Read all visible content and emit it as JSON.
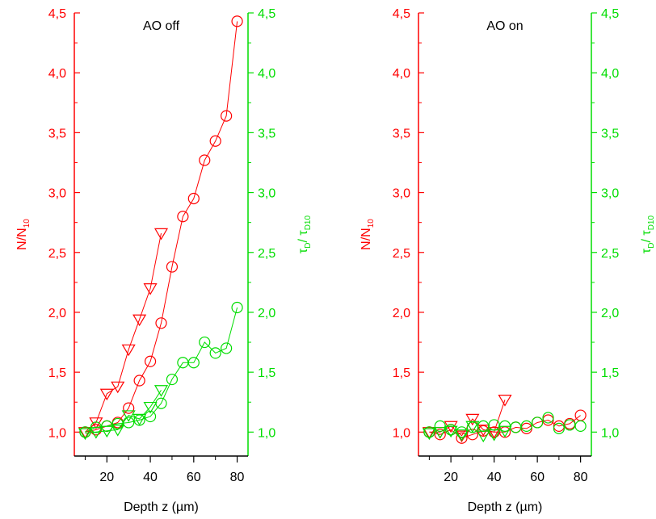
{
  "colors": {
    "left_axis": "#ff0000",
    "right_axis": "#00dd00",
    "x_axis": "#000000"
  },
  "chart_data": [
    {
      "type": "scatter",
      "title": "AO off",
      "xlabel": "Depth z (µm)",
      "ylabel": "N/N",
      "ylabel_sub": "10",
      "y2label_main": "τ",
      "y2label_sub1": "D",
      "y2label_sep": "/ τ",
      "y2label_sub2": "D10",
      "xlim": [
        5,
        85
      ],
      "ylim": [
        0.8,
        4.5
      ],
      "y2lim": [
        0.8,
        4.5
      ],
      "xticks": [
        20,
        40,
        60,
        80
      ],
      "yticks": [
        "1,0",
        "1,5",
        "2,0",
        "2,5",
        "3,0",
        "3,5",
        "4,0",
        "4,5"
      ],
      "ytick_values": [
        1.0,
        1.5,
        2.0,
        2.5,
        3.0,
        3.5,
        4.0,
        4.5
      ],
      "series": [
        {
          "axis": "left",
          "marker": "circle",
          "color": "#ff0000",
          "line": true,
          "x": [
            10,
            15,
            20,
            25,
            30,
            35,
            40,
            45,
            50,
            55,
            60,
            65,
            70,
            75,
            80
          ],
          "y": [
            1.0,
            1.02,
            1.05,
            1.08,
            1.2,
            1.43,
            1.59,
            1.91,
            2.38,
            2.8,
            2.95,
            3.27,
            3.43,
            3.64,
            4.43
          ]
        },
        {
          "axis": "left",
          "marker": "triangle-down",
          "color": "#ff0000",
          "line": true,
          "x": [
            10,
            15,
            20,
            25,
            30,
            35,
            40,
            45
          ],
          "y": [
            1.0,
            1.08,
            1.32,
            1.38,
            1.69,
            1.94,
            2.2,
            2.66
          ]
        },
        {
          "axis": "right",
          "marker": "circle",
          "color": "#00dd00",
          "line": true,
          "x": [
            10,
            15,
            20,
            25,
            30,
            35,
            40,
            45,
            50,
            55,
            60,
            65,
            70,
            75,
            80
          ],
          "y": [
            1.0,
            1.04,
            1.05,
            1.07,
            1.08,
            1.1,
            1.13,
            1.24,
            1.44,
            1.58,
            1.58,
            1.75,
            1.66,
            1.7,
            2.04
          ]
        },
        {
          "axis": "right",
          "marker": "triangle-down",
          "color": "#00dd00",
          "line": true,
          "x": [
            10,
            15,
            20,
            25,
            30,
            35,
            40,
            45
          ],
          "y": [
            0.99,
            1.0,
            1.01,
            1.02,
            1.14,
            1.11,
            1.21,
            1.35
          ]
        }
      ]
    },
    {
      "type": "scatter",
      "title": "AO on",
      "xlabel": "Depth z (µm)",
      "ylabel": "N/N",
      "ylabel_sub": "10",
      "y2label_main": "τ",
      "y2label_sub1": "D",
      "y2label_sep": "/ τ",
      "y2label_sub2": "D10",
      "xlim": [
        5,
        85
      ],
      "ylim": [
        0.8,
        4.5
      ],
      "y2lim": [
        0.8,
        4.5
      ],
      "xticks": [
        20,
        40,
        60,
        80
      ],
      "yticks": [
        "1,0",
        "1,5",
        "2,0",
        "2,5",
        "3,0",
        "3,5",
        "4,0",
        "4,5"
      ],
      "ytick_values": [
        1.0,
        1.5,
        2.0,
        2.5,
        3.0,
        3.5,
        4.0,
        4.5
      ],
      "series": [
        {
          "axis": "left",
          "marker": "circle",
          "color": "#ff0000",
          "line": true,
          "x": [
            10,
            15,
            20,
            25,
            30,
            35,
            40,
            45,
            50,
            55,
            60,
            65,
            70,
            75,
            80
          ],
          "y": [
            1.0,
            0.98,
            1.02,
            0.95,
            0.98,
            1.01,
            1.0,
            1.0,
            1.04,
            1.03,
            1.08,
            1.1,
            1.05,
            1.07,
            1.14
          ]
        },
        {
          "axis": "left",
          "marker": "triangle-down",
          "color": "#ff0000",
          "line": true,
          "x": [
            10,
            15,
            20,
            25,
            30,
            35,
            40,
            45
          ],
          "y": [
            1.0,
            1.0,
            1.05,
            0.97,
            1.11,
            1.02,
            1.0,
            1.27
          ]
        },
        {
          "axis": "right",
          "marker": "circle",
          "color": "#00dd00",
          "line": false,
          "x": [
            10,
            15,
            20,
            25,
            30,
            35,
            40,
            45,
            50,
            55,
            60,
            65,
            70,
            75,
            80
          ],
          "y": [
            1.0,
            1.05,
            1.02,
            1.0,
            1.04,
            1.05,
            1.06,
            1.05,
            1.04,
            1.05,
            1.08,
            1.12,
            1.03,
            1.06,
            1.05
          ]
        },
        {
          "axis": "right",
          "marker": "triangle-down",
          "color": "#00dd00",
          "line": false,
          "x": [
            10,
            15,
            20,
            25,
            30,
            35,
            40,
            45
          ],
          "y": [
            0.99,
            1.0,
            1.01,
            0.98,
            1.05,
            0.97,
            0.98,
            1.01
          ]
        }
      ]
    }
  ]
}
